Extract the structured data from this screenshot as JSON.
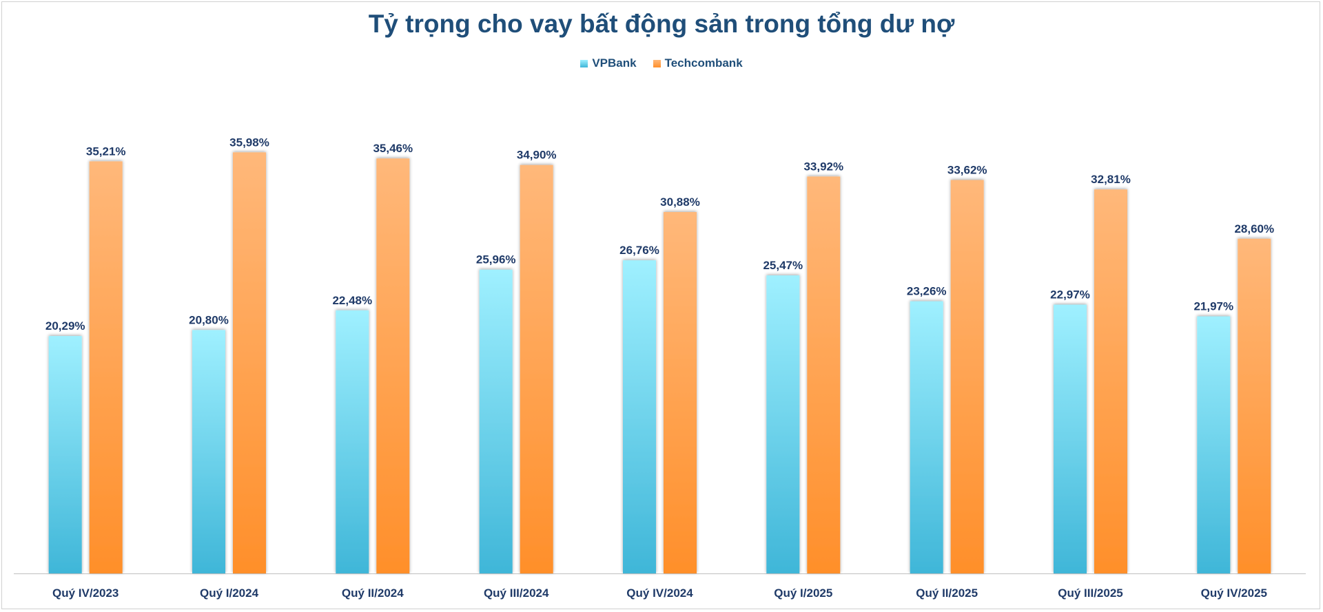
{
  "chart_data": {
    "type": "bar",
    "title": "Tỷ trọng cho vay bất động sản trong tổng dư nợ",
    "categories": [
      "Quý IV/2023",
      "Quý I/2024",
      "Quý II/2024",
      "Quý III/2024",
      "Quý IV/2024",
      "Quý I/2025",
      "Quý II/2025",
      "Quý III/2025",
      "Quý IV/2025"
    ],
    "series": [
      {
        "name": "VPBank",
        "values": [
          20.29,
          20.8,
          22.48,
          25.96,
          26.76,
          25.47,
          23.26,
          22.97,
          21.97
        ],
        "labels": [
          "20,29%",
          "20,80%",
          "22,48%",
          "25,96%",
          "26,76%",
          "25,47%",
          "23,26%",
          "22,97%",
          "21,97%"
        ],
        "color_top": "#9ff0ff",
        "color_bottom": "#3fb6d8"
      },
      {
        "name": "Techcombank",
        "values": [
          35.21,
          35.98,
          35.46,
          34.9,
          30.88,
          33.92,
          33.62,
          32.81,
          28.6
        ],
        "labels": [
          "35,21%",
          "35,98%",
          "35,46%",
          "34,90%",
          "30,88%",
          "33,92%",
          "33,62%",
          "32,81%",
          "28,60%"
        ],
        "color_top": "#ffb87a",
        "color_bottom": "#ff8f2a"
      }
    ],
    "ylim": [
      0,
      40
    ],
    "grid": false,
    "legend_position": "top-center"
  },
  "colors": {
    "title": "#1f4e79",
    "labels": "#1f3a68",
    "axis": "#bfbfbf"
  }
}
